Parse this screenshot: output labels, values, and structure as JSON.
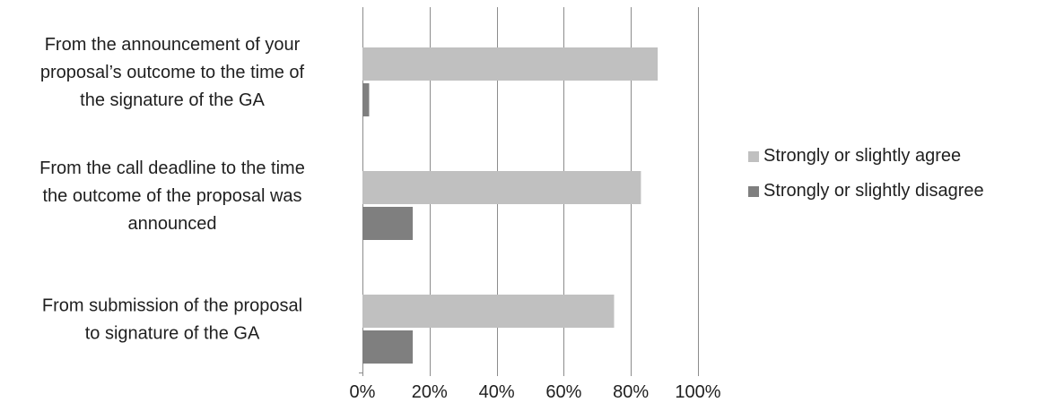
{
  "chart_data": {
    "type": "bar",
    "orientation": "horizontal",
    "title": "",
    "xlabel": "",
    "ylabel": "",
    "categories": [
      [
        "From the announcement of your",
        "proposal’s outcome to the time of",
        "the signature of the GA"
      ],
      [
        "From the call deadline to the time",
        "the outcome of the proposal was",
        "announced"
      ],
      [
        "From submission of the proposal",
        "to signature of the GA"
      ]
    ],
    "series": [
      {
        "name": "Strongly or slightly agree",
        "color": "#c0c0c0",
        "values": [
          88,
          83,
          75
        ]
      },
      {
        "name": "Strongly or slightly disagree",
        "color": "#7f7f7f",
        "values": [
          2,
          15,
          15
        ]
      }
    ],
    "xlim": [
      0,
      100
    ],
    "ticks": [
      "0%",
      "20%",
      "40%",
      "60%",
      "80%",
      "100%"
    ],
    "tick_values": [
      0,
      20,
      40,
      60,
      80,
      100
    ],
    "grid": true,
    "legend_position": "right"
  }
}
